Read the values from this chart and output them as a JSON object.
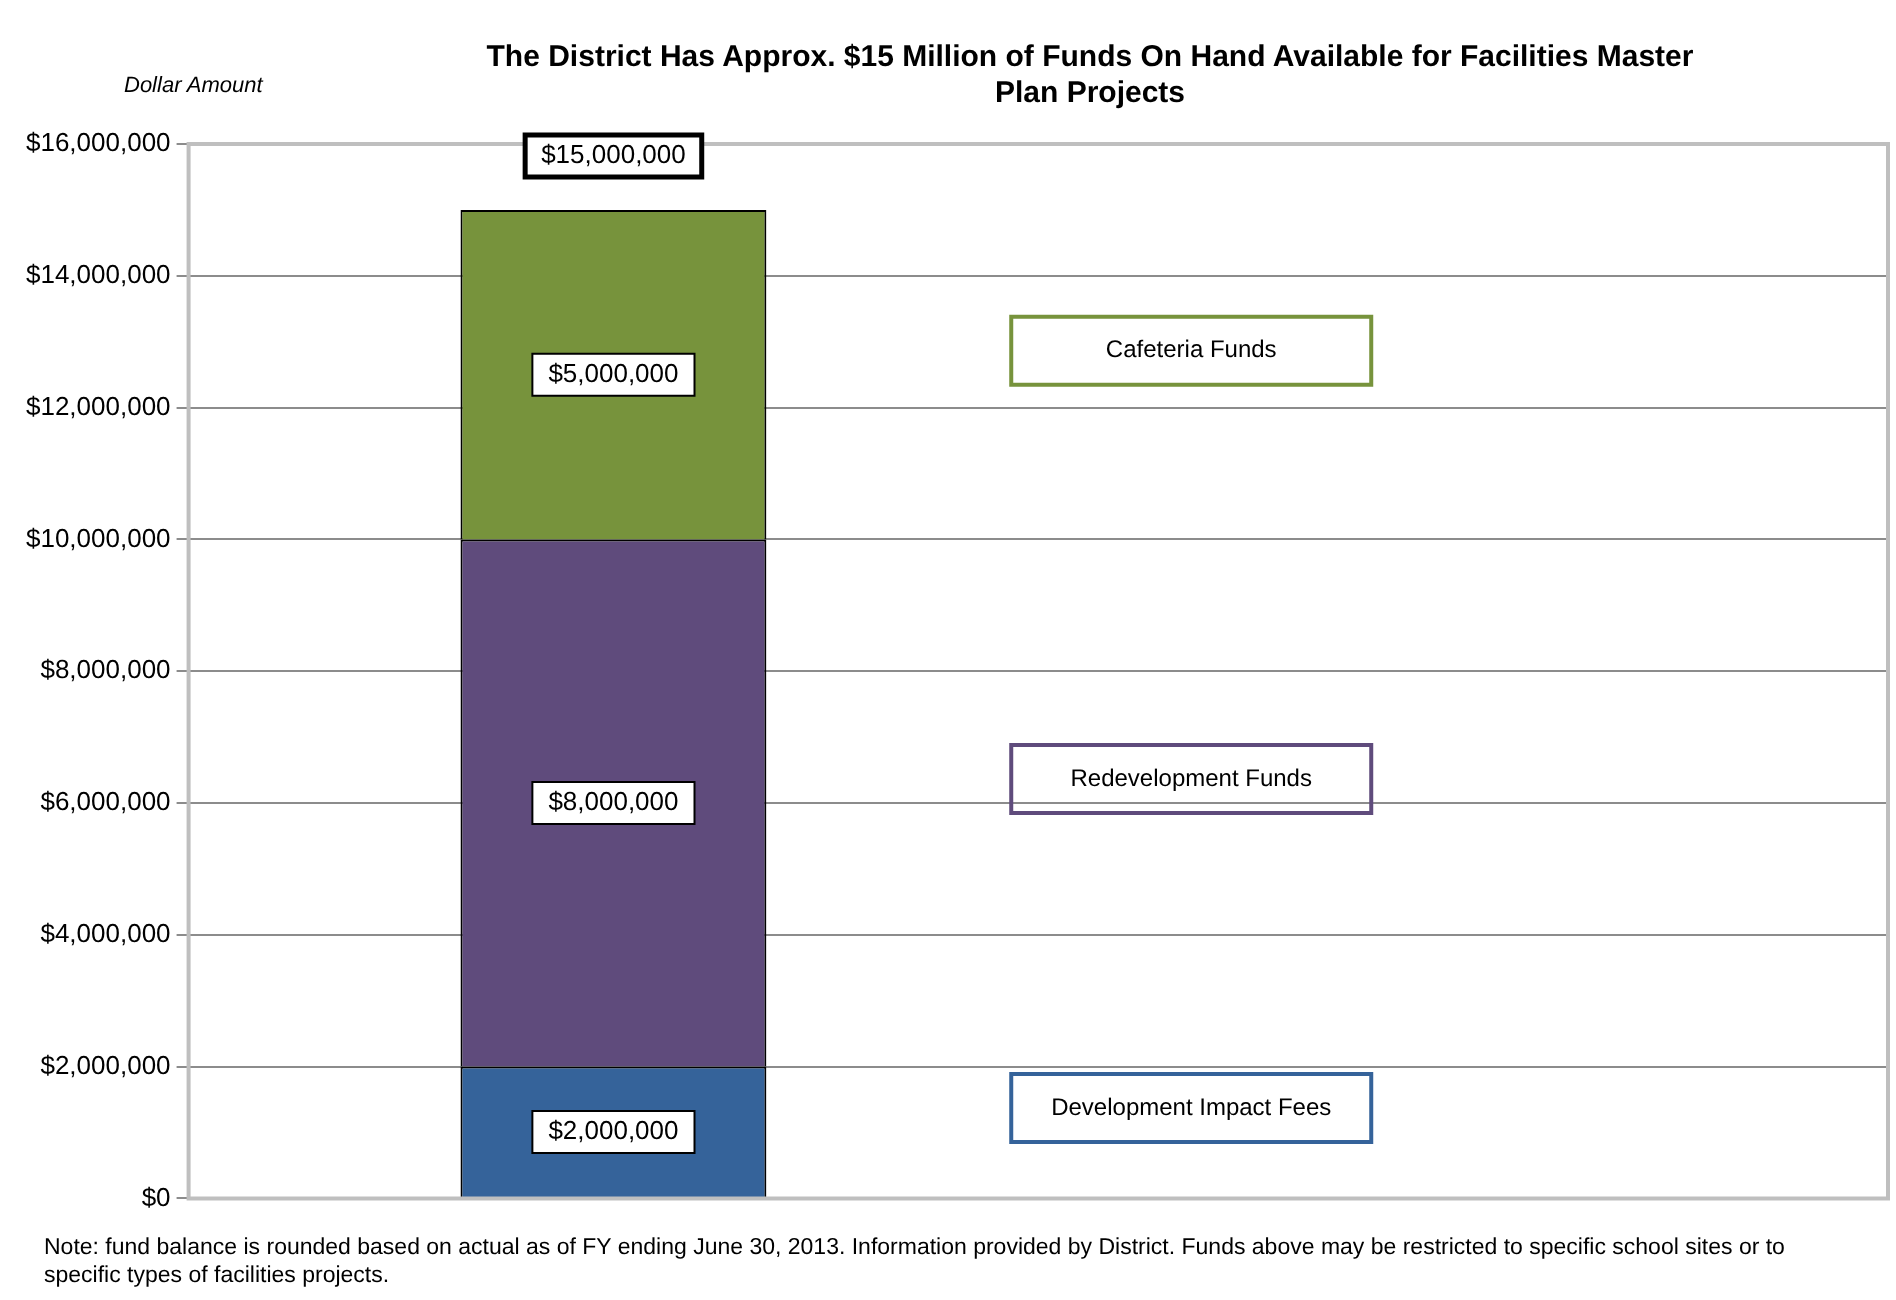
{
  "chart_data": {
    "type": "bar",
    "title": "The District Has Approx. $15 Million of Funds On Hand Available for Facilities Master Plan Projects",
    "ylabel": "Dollar Amount",
    "categories": [
      null,
      null
    ],
    "stacked": true,
    "series": [
      {
        "name": "Development Impact Fees",
        "color": "#35639a",
        "values": [
          2000000,
          null
        ],
        "value_labels": [
          "$2,000,000",
          null
        ]
      },
      {
        "name": "Redevelopment Funds",
        "color": "#5f4b7c",
        "values": [
          8000000,
          null
        ],
        "value_labels": [
          "$8,000,000",
          null
        ]
      },
      {
        "name": "Cafeteria Funds",
        "color": "#77933c",
        "values": [
          5000000,
          null
        ],
        "value_labels": [
          "$5,000,000",
          null
        ]
      }
    ],
    "totals": [
      "$15,000,000",
      null
    ],
    "ylim": [
      0,
      16000000
    ],
    "yticks": [
      {
        "value": 0,
        "label": "$0"
      },
      {
        "value": 2000000,
        "label": "$2,000,000"
      },
      {
        "value": 4000000,
        "label": "$4,000,000"
      },
      {
        "value": 6000000,
        "label": "$6,000,000"
      },
      {
        "value": 8000000,
        "label": "$8,000,000"
      },
      {
        "value": 10000000,
        "label": "$10,000,000"
      },
      {
        "value": 12000000,
        "label": "$12,000,000"
      },
      {
        "value": 14000000,
        "label": "$14,000,000"
      },
      {
        "value": 16000000,
        "label": "$16,000,000"
      }
    ],
    "grid": "y",
    "legend": "right",
    "annotations": [
      "Note: fund balance is rounded based on actual as of FY ending June 30, 2013. Information provided by District. Funds above may be restricted to specific school sites or to specific types of facilities projects."
    ]
  }
}
